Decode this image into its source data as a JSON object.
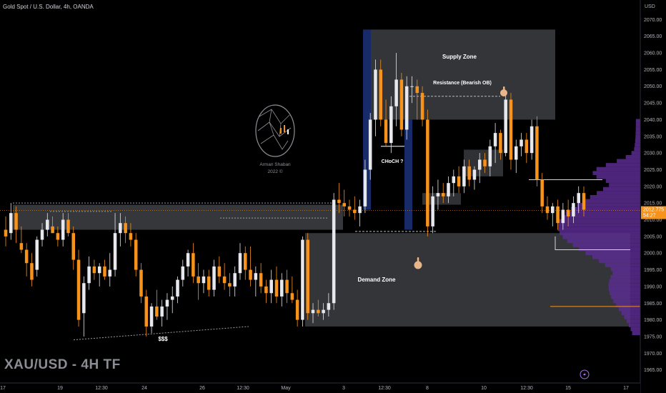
{
  "header": {
    "title": "Gold Spot / U.S. Dollar, 4h, OANDA"
  },
  "watermark": {
    "text": "XAU/USD - 4H TF"
  },
  "logo": {
    "name": "Arman Shaban",
    "year": "2022 ©"
  },
  "price_axis": {
    "currency": "USD",
    "last_price": "2012.775",
    "countdown": "54:27"
  },
  "annotations": {
    "supply_zone": "Supply Zone",
    "resistance": "Resistance (Bearish OB)",
    "demand_zone": "Demand Zone",
    "choch": "CHoCH ?",
    "liquidity": "$$$"
  },
  "colors": {
    "bull": "#e6e8ee",
    "bear": "#f7931a",
    "background": "#000000",
    "zone": "#6a6d73",
    "volume_profile": "#5b2d91",
    "highlight": "#1a2a5a"
  },
  "icons": [
    "pointing-hand-icon",
    "brain-logo-icon",
    "lightning-icon"
  ],
  "chart_data": {
    "type": "candlestick",
    "symbol": "XAUUSD",
    "timeframe": "4h",
    "ylim": [
      1960,
      2075
    ],
    "y_ticks": [
      1965,
      1970,
      1975,
      1980,
      1985,
      1990,
      1995,
      2000,
      2005,
      2010,
      2015,
      2020,
      2025,
      2030,
      2035,
      2040,
      2045,
      2050,
      2055,
      2060,
      2065,
      2070
    ],
    "x_ticks": [
      "17",
      "19",
      "12:30",
      "24",
      "26",
      "12:30",
      "May",
      "3",
      "12:30",
      "8",
      "10",
      "12:30",
      "15",
      "17"
    ],
    "candles": [
      [
        2007,
        2011,
        2002,
        2005
      ],
      [
        2006,
        2015,
        2004,
        2012
      ],
      [
        2012,
        2014,
        2003,
        2007
      ],
      [
        2003,
        2008,
        2000,
        2001
      ],
      [
        2001,
        2003,
        1993,
        1997
      ],
      [
        1997,
        2000,
        1990,
        1992
      ],
      [
        1995,
        2005,
        1993,
        2004
      ],
      [
        2004,
        2009,
        2002,
        2007
      ],
      [
        2007,
        2012,
        2005,
        2010
      ],
      [
        2008,
        2011,
        2006,
        2006
      ],
      [
        2006,
        2008,
        2002,
        2004
      ],
      [
        2004,
        2012,
        2002,
        2010
      ],
      [
        2010,
        2012,
        2005,
        2006
      ],
      [
        2006,
        2008,
        1995,
        1998
      ],
      [
        1998,
        2001,
        1978,
        1980
      ],
      [
        1982,
        1993,
        1975,
        1991
      ],
      [
        1991,
        1999,
        1989,
        1996
      ],
      [
        1996,
        1998,
        1992,
        1994
      ],
      [
        1994,
        1997,
        1990,
        1996
      ],
      [
        1996,
        1998,
        1992,
        1993
      ],
      [
        1993,
        2000,
        1990,
        1995
      ],
      [
        1995,
        2012,
        1993,
        2006
      ],
      [
        2006,
        2012,
        2002,
        2009
      ],
      [
        2009,
        2011,
        2003,
        2006
      ],
      [
        2006,
        2009,
        2002,
        2004
      ],
      [
        2004,
        2006,
        1993,
        1995
      ],
      [
        1995,
        1997,
        1985,
        1987
      ],
      [
        1987,
        1989,
        1975,
        1978
      ],
      [
        1978,
        1985,
        1976,
        1984
      ],
      [
        1984,
        1989,
        1980,
        1981
      ],
      [
        1981,
        1986,
        1978,
        1984
      ],
      [
        1984,
        1988,
        1980,
        1986
      ],
      [
        1986,
        1990,
        1982,
        1987
      ],
      [
        1987,
        1993,
        1985,
        1992
      ],
      [
        1992,
        1998,
        1990,
        1996
      ],
      [
        1996,
        2001,
        1993,
        2000
      ],
      [
        2000,
        2003,
        1991,
        1993
      ],
      [
        1993,
        1997,
        1986,
        1991
      ],
      [
        1991,
        1995,
        1988,
        1993
      ],
      [
        1993,
        1995,
        1987,
        1989
      ],
      [
        1989,
        1998,
        1987,
        1996
      ],
      [
        1996,
        1999,
        1991,
        1993
      ],
      [
        1993,
        1997,
        1989,
        1991
      ],
      [
        1991,
        1994,
        1987,
        1990
      ],
      [
        1990,
        1996,
        1987,
        1994
      ],
      [
        1994,
        2003,
        1992,
        2000
      ],
      [
        2000,
        2002,
        1992,
        1995
      ],
      [
        1995,
        2002,
        1990,
        1992
      ],
      [
        1992,
        1996,
        1987,
        1994
      ],
      [
        1994,
        1997,
        1988,
        1990
      ],
      [
        1990,
        1992,
        1985,
        1988
      ],
      [
        1988,
        1995,
        1985,
        1992
      ],
      [
        1992,
        1996,
        1985,
        1987
      ],
      [
        1987,
        1994,
        1984,
        1992
      ],
      [
        1992,
        1995,
        1985,
        1988
      ],
      [
        1988,
        1993,
        1985,
        1986
      ],
      [
        1986,
        1989,
        1978,
        1980
      ],
      [
        1980,
        2005,
        1978,
        2004
      ],
      [
        2004,
        2006,
        1980,
        1982
      ],
      [
        1982,
        1985,
        1979,
        1983
      ],
      [
        1983,
        1986,
        1981,
        1982
      ],
      [
        1982,
        1985,
        1980,
        1983
      ],
      [
        1983,
        1988,
        1981,
        1985
      ],
      [
        1985,
        2018,
        1983,
        2016
      ],
      [
        2016,
        2021,
        2012,
        2015
      ],
      [
        2015,
        2019,
        2011,
        2014
      ],
      [
        2014,
        2016,
        2011,
        2013
      ],
      [
        2013,
        2017,
        2010,
        2012
      ],
      [
        2012,
        2016,
        2008,
        2014
      ],
      [
        2014,
        2028,
        2012,
        2025
      ],
      [
        2025,
        2042,
        2022,
        2040
      ],
      [
        2040,
        2058,
        2035,
        2055
      ],
      [
        2055,
        2058,
        2038,
        2040
      ],
      [
        2040,
        2046,
        2032,
        2033
      ],
      [
        2033,
        2047,
        2030,
        2044
      ],
      [
        2044,
        2060,
        2038,
        2052
      ],
      [
        2052,
        2054,
        2035,
        2037
      ],
      [
        2037,
        2053,
        2034,
        2050
      ],
      [
        2050,
        2053,
        2045,
        2050
      ],
      [
        2050,
        2052,
        2040,
        2048
      ],
      [
        2048,
        2050,
        2038,
        2040
      ],
      [
        2040,
        2043,
        2005,
        2008
      ],
      [
        2008,
        2020,
        2006,
        2017
      ],
      [
        2017,
        2022,
        2013,
        2018
      ],
      [
        2018,
        2021,
        2015,
        2017
      ],
      [
        2017,
        2023,
        2015,
        2021
      ],
      [
        2021,
        2025,
        2017,
        2023
      ],
      [
        2023,
        2026,
        2018,
        2020
      ],
      [
        2020,
        2028,
        2018,
        2026
      ],
      [
        2026,
        2028,
        2020,
        2022
      ],
      [
        2022,
        2026,
        2019,
        2025
      ],
      [
        2025,
        2030,
        2021,
        2028
      ],
      [
        2028,
        2030,
        2024,
        2026
      ],
      [
        2026,
        2034,
        2023,
        2032
      ],
      [
        2032,
        2039,
        2027,
        2036
      ],
      [
        2036,
        2037,
        2028,
        2030
      ],
      [
        2030,
        2048,
        2029,
        2046
      ],
      [
        2046,
        2048,
        2025,
        2028
      ],
      [
        2028,
        2034,
        2024,
        2032
      ],
      [
        2032,
        2036,
        2029,
        2034
      ],
      [
        2034,
        2036,
        2027,
        2030
      ],
      [
        2030,
        2040,
        2028,
        2038
      ],
      [
        2038,
        2041,
        2020,
        2022
      ],
      [
        2022,
        2024,
        2012,
        2014
      ],
      [
        2014,
        2017,
        2010,
        2012
      ],
      [
        2012,
        2015,
        2008,
        2014
      ],
      [
        2014,
        2016,
        2007,
        2009
      ],
      [
        2009,
        2015,
        2007,
        2013
      ],
      [
        2013,
        2016,
        2008,
        2011
      ],
      [
        2011,
        2017,
        2009,
        2015
      ],
      [
        2015,
        2020,
        2012,
        2018
      ],
      [
        2018,
        2020,
        2011,
        2013
      ]
    ],
    "zones": [
      {
        "label": "Supply Zone",
        "top": 2067,
        "bottom": 2040
      },
      {
        "label": "Demand Zone",
        "top": 2006,
        "bottom": 1978
      }
    ],
    "volume_profile": "visible range, point of control near 2007",
    "last_price": 2012.775
  }
}
